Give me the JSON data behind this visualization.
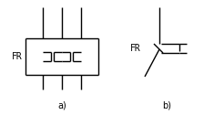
{
  "bg_color": "#ffffff",
  "line_color": "#000000",
  "line_width": 1.0,
  "label_a": "a)",
  "label_b": "b)",
  "fr_label": "FR",
  "font_size": 7
}
